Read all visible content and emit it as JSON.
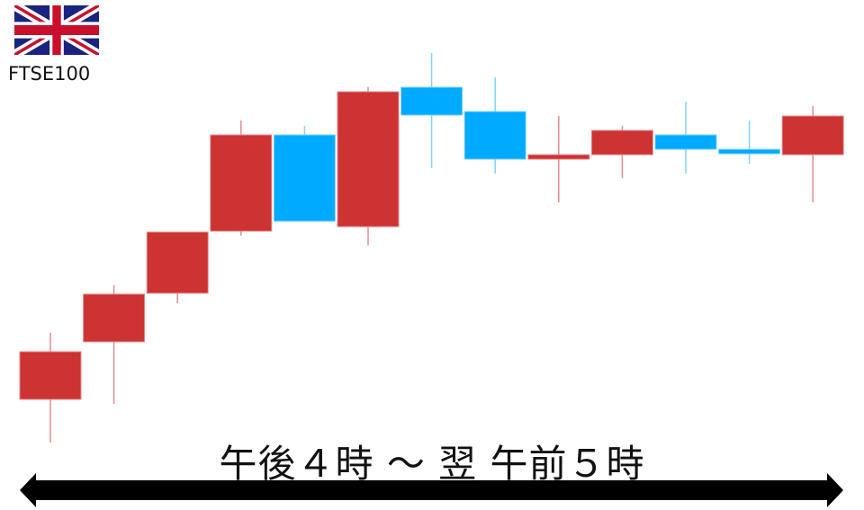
{
  "index": {
    "name": "FTSE100",
    "flag": "uk-flag-icon"
  },
  "time_range_label": "午後４時 ～ 翌 午前５時",
  "colors": {
    "up": "#cc3333",
    "down": "#00aaff",
    "up_wick": "#e88a8a",
    "down_wick": "#7fd3ff"
  },
  "chart_data": {
    "type": "candlestick",
    "title": "",
    "xlabel": "午後４時 ～ 翌 午前５時",
    "ylabel": "",
    "grid": false,
    "ylim": [
      0,
      450
    ],
    "candles": [
      {
        "open": 56,
        "high": 130,
        "low": 8,
        "close": 109
      },
      {
        "open": 120,
        "high": 183,
        "low": 51,
        "close": 173
      },
      {
        "open": 174,
        "high": 242,
        "low": 163,
        "close": 242
      },
      {
        "open": 243,
        "high": 366,
        "low": 238,
        "close": 350
      },
      {
        "open": 350,
        "high": 360,
        "low": 254,
        "close": 254
      },
      {
        "open": 248,
        "high": 403,
        "low": 227,
        "close": 398
      },
      {
        "open": 403,
        "high": 441,
        "low": 313,
        "close": 372
      },
      {
        "open": 376,
        "high": 414,
        "low": 307,
        "close": 323
      },
      {
        "open": 323,
        "high": 371,
        "low": 275,
        "close": 328
      },
      {
        "open": 328,
        "high": 360,
        "low": 302,
        "close": 355
      },
      {
        "open": 350,
        "high": 387,
        "low": 307,
        "close": 334
      },
      {
        "open": 334,
        "high": 366,
        "low": 318,
        "close": 329
      },
      {
        "open": 328,
        "high": 382,
        "low": 275,
        "close": 371
      }
    ]
  }
}
